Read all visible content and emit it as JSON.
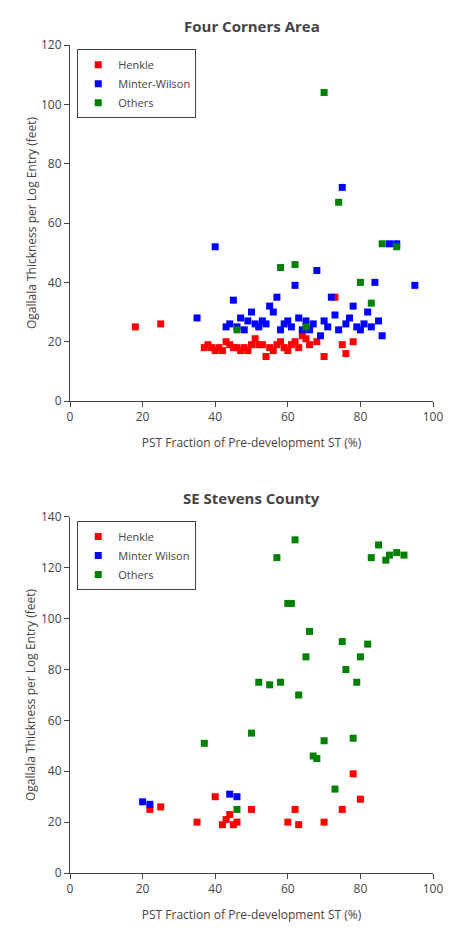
{
  "chart_data": [
    {
      "type": "scatter",
      "title": "Four Corners Area",
      "x_label": "PST Fraction of Pre-development ST (%)",
      "y_label": "Ogallala Thickness per Log Entry (feet)",
      "xlim": [
        0,
        100
      ],
      "ylim": [
        0,
        120
      ],
      "xticks": [
        0,
        20,
        40,
        60,
        80,
        100
      ],
      "yticks": [
        0,
        20,
        40,
        60,
        80,
        100,
        120
      ],
      "grid": false,
      "legend": "upper left",
      "marker": "square",
      "series": [
        {
          "name": "Henkle",
          "color": "#ff0000",
          "x": [
            18,
            25,
            37,
            38,
            39,
            40,
            41,
            42,
            43,
            44,
            45,
            46,
            47,
            48,
            49,
            50,
            51,
            52,
            53,
            54,
            55,
            56,
            57,
            58,
            59,
            60,
            61,
            62,
            63,
            64,
            65,
            66,
            68,
            70,
            73,
            75,
            76,
            78
          ],
          "values": [
            25,
            26,
            18,
            19,
            18,
            17,
            18,
            17,
            20,
            19,
            18,
            18,
            17,
            18,
            17,
            19,
            21,
            19,
            19,
            15,
            18,
            17,
            19,
            20,
            18,
            17,
            19,
            20,
            18,
            22,
            21,
            19,
            20,
            15,
            35,
            19,
            16,
            20
          ]
        },
        {
          "name": "Minter-Wilson",
          "color": "#0000ff",
          "x": [
            35,
            40,
            43,
            44,
            45,
            46,
            47,
            48,
            49,
            50,
            51,
            52,
            53,
            54,
            55,
            56,
            57,
            58,
            59,
            60,
            61,
            62,
            63,
            64,
            65,
            66,
            67,
            68,
            69,
            70,
            71,
            72,
            73,
            74,
            75,
            76,
            77,
            78,
            79,
            80,
            81,
            82,
            83,
            84,
            85,
            86,
            88,
            90,
            95
          ],
          "values": [
            28,
            52,
            25,
            26,
            34,
            25,
            28,
            24,
            27,
            30,
            26,
            25,
            27,
            26,
            32,
            30,
            35,
            24,
            26,
            27,
            25,
            39,
            28,
            24,
            27,
            24,
            26,
            44,
            22,
            27,
            25,
            35,
            29,
            24,
            72,
            26,
            28,
            32,
            25,
            24,
            26,
            30,
            25,
            40,
            27,
            22,
            53,
            53,
            39
          ]
        },
        {
          "name": "Others",
          "color": "#008000",
          "x": [
            46,
            58,
            62,
            65,
            70,
            74,
            80,
            83,
            86,
            90
          ],
          "values": [
            24,
            45,
            46,
            25,
            104,
            67,
            40,
            33,
            53,
            52
          ]
        }
      ]
    },
    {
      "type": "scatter",
      "title": "SE Stevens County",
      "x_label": "PST Fraction of Pre-development ST (%)",
      "y_label": "Ogallala Thickness per Log Entry (feet)",
      "xlim": [
        0,
        100
      ],
      "ylim": [
        0,
        140
      ],
      "xticks": [
        0,
        20,
        40,
        60,
        80,
        100
      ],
      "yticks": [
        0,
        20,
        40,
        60,
        80,
        100,
        120,
        140
      ],
      "grid": false,
      "legend": "upper left",
      "marker": "square",
      "series": [
        {
          "name": "Henkle",
          "color": "#ff0000",
          "x": [
            22,
            25,
            35,
            40,
            42,
            43,
            44,
            45,
            46,
            50,
            60,
            62,
            63,
            70,
            75,
            78,
            80
          ],
          "values": [
            25,
            26,
            20,
            30,
            19,
            21,
            23,
            19,
            20,
            25,
            20,
            25,
            19,
            20,
            25,
            39,
            29
          ]
        },
        {
          "name": "Minter Wilson",
          "color": "#0000ff",
          "x": [
            20,
            22,
            44,
            46
          ],
          "values": [
            28,
            27,
            31,
            30
          ]
        },
        {
          "name": "Others",
          "color": "#008000",
          "x": [
            37,
            46,
            50,
            52,
            55,
            57,
            58,
            60,
            61,
            62,
            63,
            65,
            66,
            67,
            68,
            70,
            73,
            75,
            76,
            78,
            79,
            80,
            82,
            83,
            85,
            87,
            88,
            90,
            92
          ],
          "values": [
            51,
            25,
            55,
            75,
            74,
            124,
            75,
            106,
            106,
            131,
            70,
            85,
            95,
            46,
            45,
            52,
            33,
            91,
            80,
            53,
            75,
            85,
            90,
            124,
            129,
            123,
            125,
            126,
            125
          ]
        }
      ]
    }
  ]
}
